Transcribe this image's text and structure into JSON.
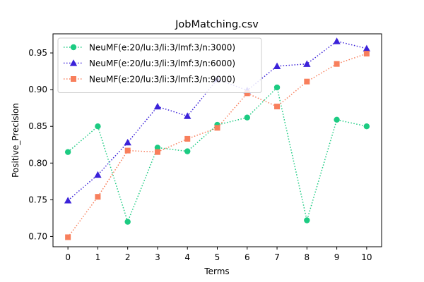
{
  "chart_data": {
    "type": "line",
    "title": "JobMatching.csv",
    "xlabel": "Terms",
    "ylabel": "Positive_Precision",
    "x": [
      0,
      1,
      2,
      3,
      4,
      5,
      6,
      7,
      8,
      9,
      10
    ],
    "xlim": [
      -0.5,
      10.5
    ],
    "ylim": [
      0.686,
      0.976
    ],
    "x_ticks": [
      0,
      1,
      2,
      3,
      4,
      5,
      6,
      7,
      8,
      9,
      10
    ],
    "y_ticks": [
      0.7,
      0.75,
      0.8,
      0.85,
      0.9,
      0.95
    ],
    "y_tick_labels": [
      "0.70",
      "0.75",
      "0.80",
      "0.85",
      "0.90",
      "0.95"
    ],
    "grid": false,
    "legend_position": "upper-left",
    "series": [
      {
        "name": "NeuMF(e:20/lu:3/li:3/lmf:3/n:3000)",
        "color": "#1ccb82",
        "marker": "circle",
        "values": [
          0.815,
          0.85,
          0.72,
          0.821,
          0.816,
          0.852,
          0.862,
          0.903,
          0.722,
          0.859,
          0.85
        ]
      },
      {
        "name": "NeuMF(e:20/lu:3/li:3/lmf:3/n:6000)",
        "color": "#3b22d9",
        "marker": "triangle",
        "values": [
          0.749,
          0.784,
          0.828,
          0.877,
          0.864,
          0.914,
          0.899,
          0.932,
          0.935,
          0.966,
          0.956
        ]
      },
      {
        "name": "NeuMF(e:20/lu:3/li:3/lmf:3/n:9000)",
        "color": "#f87f5c",
        "marker": "square",
        "values": [
          0.699,
          0.754,
          0.817,
          0.815,
          0.833,
          0.848,
          0.895,
          0.877,
          0.911,
          0.935,
          0.949
        ]
      }
    ]
  }
}
